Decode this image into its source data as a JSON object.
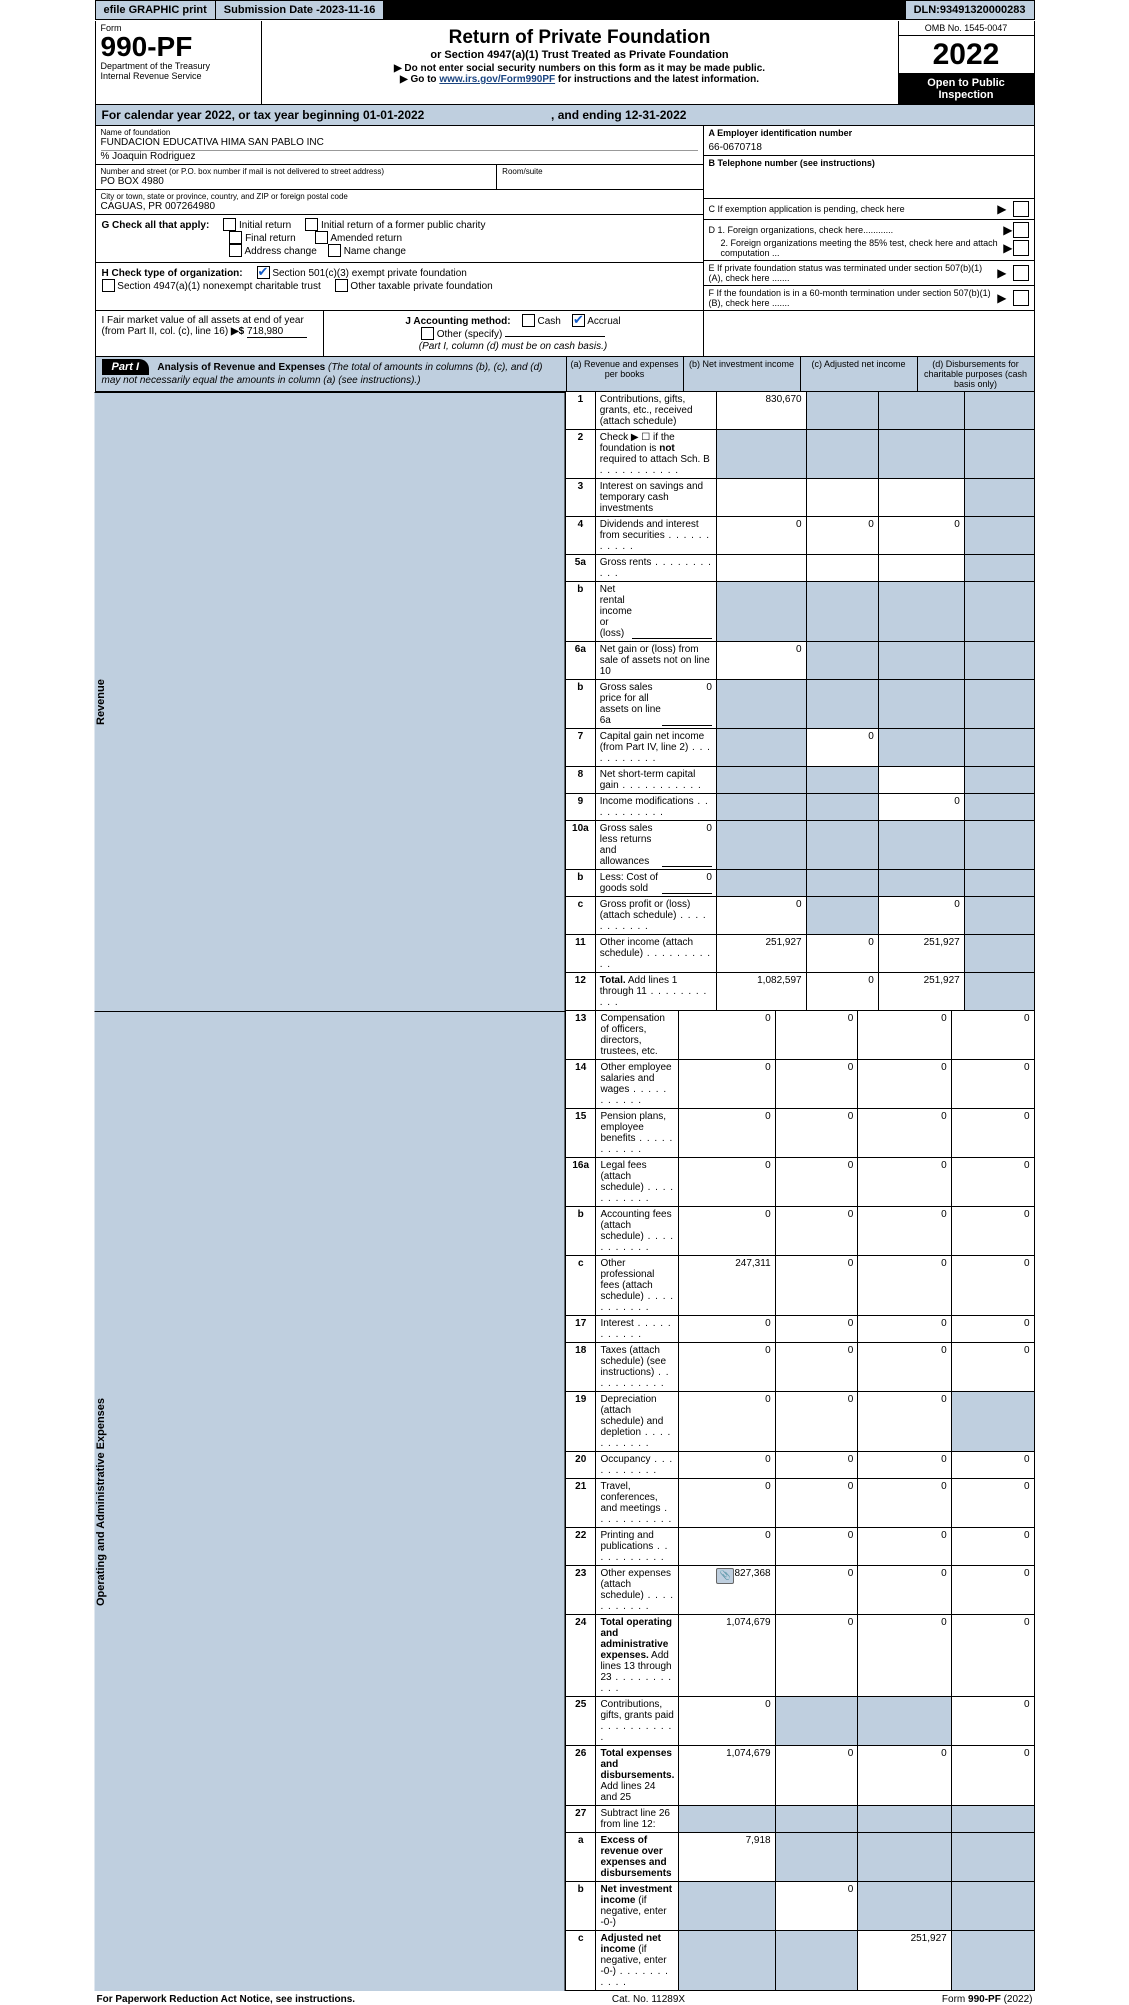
{
  "topbar": {
    "efile": "efile GRAPHIC print",
    "subdate_label": "Submission Date - ",
    "subdate": "2023-11-16",
    "dln_label": "DLN: ",
    "dln": "93491320000283"
  },
  "colors": {
    "header_bg": "#bfcfdf",
    "accent": "#1059c7"
  },
  "header_left": {
    "form": "Form",
    "form_no": "990-PF",
    "dept": "Department of the Treasury",
    "irs": "Internal Revenue Service"
  },
  "header_center": {
    "title": "Return of Private Foundation",
    "subtitle": "or Section 4947(a)(1) Trust Treated as Private Foundation",
    "line1": "▶ Do not enter social security numbers on this form as it may be made public.",
    "line2_prefix": "▶ Go to ",
    "line2_link": "www.irs.gov/Form990PF",
    "line2_suffix": " for instructions and the latest information."
  },
  "header_right": {
    "omb": "OMB No. 1545-0047",
    "year": "2022",
    "open": "Open to Public Inspection"
  },
  "calyear": {
    "text1": "For calendar year 2022, or tax year beginning ",
    "begin": "01-01-2022",
    "text2": " , and ending ",
    "end": "12-31-2022"
  },
  "info": {
    "name_lbl": "Name of foundation",
    "name": "FUNDACION EDUCATIVA HIMA SAN PABLO INC",
    "care": "% Joaquin Rodriguez",
    "street_lbl": "Number and street (or P.O. box number if mail is not delivered to street address)",
    "street": "PO BOX 4980",
    "room_lbl": "Room/suite",
    "city_lbl": "City or town, state or province, country, and ZIP or foreign postal code",
    "city": "CAGUAS, PR  007264980",
    "a_lbl": "A Employer identification number",
    "ein": "66-0670718",
    "b_lbl": "B Telephone number (see instructions)",
    "c_lbl": "C If exemption application is pending, check here",
    "d1_lbl": "D 1. Foreign organizations, check here............",
    "d2_lbl": "2. Foreign organizations meeting the 85% test, check here and attach computation ...",
    "e_lbl": "E  If private foundation status was terminated under section 507(b)(1)(A), check here .......",
    "f_lbl": "F  If the foundation is in a 60-month termination under section 507(b)(1)(B), check here ......."
  },
  "g": {
    "lbl": "G Check all that apply:",
    "opts": [
      "Initial return",
      "Initial return of a former public charity",
      "Final return",
      "Amended return",
      "Address change",
      "Name change"
    ]
  },
  "h": {
    "lbl": "H Check type of organization:",
    "o1": "Section 501(c)(3) exempt private foundation",
    "o2": "Section 4947(a)(1) nonexempt charitable trust",
    "o3": "Other taxable private foundation"
  },
  "i": {
    "label": "I Fair market value of all assets at end of year (from Part II, col. (c), line 16)",
    "arrow": "▶$",
    "value": "718,980"
  },
  "j": {
    "label": "J Accounting method:",
    "cash": "Cash",
    "accrual": "Accrual",
    "other": "Other (specify)",
    "note": "(Part I, column (d) must be on cash basis.)"
  },
  "part1": {
    "badge": "Part I",
    "title": "Analysis of Revenue and Expenses",
    "paren": "(The total of amounts in columns (b), (c), and (d) may not necessarily equal the amounts in column (a) (see instructions).)",
    "col_a": "(a)    Revenue and expenses per books",
    "col_b": "(b)    Net investment income",
    "col_c": "(c)   Adjusted net income",
    "col_d": "(d)   Disbursements for charitable purposes (cash basis only)"
  },
  "sections": [
    "Revenue",
    "Operating and Administrative Expenses"
  ],
  "rows": [
    {
      "n": "1",
      "l": "Contributions, gifts, grants, etc., received (attach schedule)",
      "a": "830,670",
      "b": "",
      "c": "",
      "d": "",
      "bs": true,
      "cs": true,
      "ds": true
    },
    {
      "n": "2",
      "l": "Check ▶ ☐ if the foundation is <b>not</b> required to attach Sch. B",
      "a": "",
      "b": "",
      "c": "",
      "d": "",
      "as": true,
      "bs": true,
      "cs": true,
      "ds": true,
      "dots": true
    },
    {
      "n": "3",
      "l": "Interest on savings and temporary cash investments",
      "a": "",
      "b": "",
      "c": "",
      "d": "",
      "ds": true
    },
    {
      "n": "4",
      "l": "Dividends and interest from securities",
      "a": "0",
      "b": "0",
      "c": "0",
      "d": "",
      "ds": true,
      "dots": true
    },
    {
      "n": "5a",
      "l": "Gross rents",
      "a": "",
      "b": "",
      "c": "",
      "d": "",
      "ds": true,
      "dots": true
    },
    {
      "n": "b",
      "l": "Net rental income or (loss)",
      "a": "",
      "b": "",
      "c": "",
      "d": "",
      "as": true,
      "bs": true,
      "cs": true,
      "ds": true,
      "inset": true
    },
    {
      "n": "6a",
      "l": "Net gain or (loss) from sale of assets not on line 10",
      "a": "0",
      "b": "",
      "c": "",
      "d": "",
      "bs": true,
      "cs": true,
      "ds": true
    },
    {
      "n": "b",
      "l": "Gross sales price for all assets on line 6a",
      "a": "",
      "b": "",
      "c": "",
      "d": "",
      "as": true,
      "bs": true,
      "cs": true,
      "ds": true,
      "inset": true,
      "iv": "0"
    },
    {
      "n": "7",
      "l": "Capital gain net income (from Part IV, line 2)",
      "a": "",
      "b": "0",
      "c": "",
      "d": "",
      "as": true,
      "cs": true,
      "ds": true,
      "dots": true
    },
    {
      "n": "8",
      "l": "Net short-term capital gain",
      "a": "",
      "b": "",
      "c": "",
      "d": "",
      "as": true,
      "bs": true,
      "ds": true,
      "dots": true
    },
    {
      "n": "9",
      "l": "Income modifications",
      "a": "",
      "b": "",
      "c": "0",
      "d": "",
      "as": true,
      "bs": true,
      "ds": true,
      "dots": true
    },
    {
      "n": "10a",
      "l": "Gross sales less returns and allowances",
      "a": "",
      "b": "",
      "c": "",
      "d": "",
      "as": true,
      "bs": true,
      "cs": true,
      "ds": true,
      "inset": true,
      "iv": "0"
    },
    {
      "n": "b",
      "l": "Less: Cost of goods sold",
      "a": "",
      "b": "",
      "c": "",
      "d": "",
      "as": true,
      "bs": true,
      "cs": true,
      "ds": true,
      "inset": true,
      "iv": "0",
      "dots": true
    },
    {
      "n": "c",
      "l": "Gross profit or (loss) (attach schedule)",
      "a": "0",
      "b": "",
      "c": "0",
      "d": "",
      "bs": true,
      "ds": true,
      "dots": true
    },
    {
      "n": "11",
      "l": "Other income (attach schedule)",
      "a": "251,927",
      "b": "0",
      "c": "251,927",
      "d": "",
      "ds": true,
      "dots": true
    },
    {
      "n": "12",
      "l": "<b>Total.</b> Add lines 1 through 11",
      "a": "1,082,597",
      "b": "0",
      "c": "251,927",
      "d": "",
      "ds": true,
      "dots": true
    }
  ],
  "rows2": [
    {
      "n": "13",
      "l": "Compensation of officers, directors, trustees, etc.",
      "a": "0",
      "b": "0",
      "c": "0",
      "d": "0"
    },
    {
      "n": "14",
      "l": "Other employee salaries and wages",
      "a": "0",
      "b": "0",
      "c": "0",
      "d": "0",
      "dots": true
    },
    {
      "n": "15",
      "l": "Pension plans, employee benefits",
      "a": "0",
      "b": "0",
      "c": "0",
      "d": "0",
      "dots": true
    },
    {
      "n": "16a",
      "l": "Legal fees (attach schedule)",
      "a": "0",
      "b": "0",
      "c": "0",
      "d": "0",
      "dots": true
    },
    {
      "n": "b",
      "l": "Accounting fees (attach schedule)",
      "a": "0",
      "b": "0",
      "c": "0",
      "d": "0",
      "dots": true
    },
    {
      "n": "c",
      "l": "Other professional fees (attach schedule)",
      "a": "247,311",
      "b": "0",
      "c": "0",
      "d": "0",
      "dots": true
    },
    {
      "n": "17",
      "l": "Interest",
      "a": "0",
      "b": "0",
      "c": "0",
      "d": "0",
      "dots": true
    },
    {
      "n": "18",
      "l": "Taxes (attach schedule) (see instructions)",
      "a": "0",
      "b": "0",
      "c": "0",
      "d": "0",
      "dots": true
    },
    {
      "n": "19",
      "l": "Depreciation (attach schedule) and depletion",
      "a": "0",
      "b": "0",
      "c": "0",
      "d": "",
      "ds": true,
      "dots": true
    },
    {
      "n": "20",
      "l": "Occupancy",
      "a": "0",
      "b": "0",
      "c": "0",
      "d": "0",
      "dots": true
    },
    {
      "n": "21",
      "l": "Travel, conferences, and meetings",
      "a": "0",
      "b": "0",
      "c": "0",
      "d": "0",
      "dots": true
    },
    {
      "n": "22",
      "l": "Printing and publications",
      "a": "0",
      "b": "0",
      "c": "0",
      "d": "0",
      "dots": true
    },
    {
      "n": "23",
      "l": "Other expenses (attach schedule)",
      "a": "827,368",
      "b": "0",
      "c": "0",
      "d": "0",
      "dots": true,
      "att": true
    },
    {
      "n": "24",
      "l": "<b>Total operating and administrative expenses.</b> Add lines 13 through 23",
      "a": "1,074,679",
      "b": "0",
      "c": "0",
      "d": "0",
      "dots": true
    },
    {
      "n": "25",
      "l": "Contributions, gifts, grants paid",
      "a": "0",
      "b": "",
      "c": "",
      "d": "0",
      "bs": true,
      "cs": true,
      "dots": true
    },
    {
      "n": "26",
      "l": "<b>Total expenses and disbursements.</b> Add lines 24 and 25",
      "a": "1,074,679",
      "b": "0",
      "c": "0",
      "d": "0"
    },
    {
      "n": "27",
      "l": "Subtract line 26 from line 12:",
      "a": "",
      "b": "",
      "c": "",
      "d": "",
      "as": true,
      "bs": true,
      "cs": true,
      "ds": true
    },
    {
      "n": "a",
      "l": "<b>Excess of revenue over expenses and disbursements</b>",
      "a": "7,918",
      "b": "",
      "c": "",
      "d": "",
      "bs": true,
      "cs": true,
      "ds": true
    },
    {
      "n": "b",
      "l": "<b>Net investment income</b> (if negative, enter -0-)",
      "a": "",
      "b": "0",
      "c": "",
      "d": "",
      "as": true,
      "cs": true,
      "ds": true
    },
    {
      "n": "c",
      "l": "<b>Adjusted net income</b> (if negative, enter -0-)",
      "a": "",
      "b": "",
      "c": "251,927",
      "d": "",
      "as": true,
      "bs": true,
      "ds": true,
      "dots": true
    }
  ],
  "footer": {
    "left": "For Paperwork Reduction Act Notice, see instructions.",
    "mid": "Cat. No. 11289X",
    "right": "Form 990-PF (2022)"
  }
}
